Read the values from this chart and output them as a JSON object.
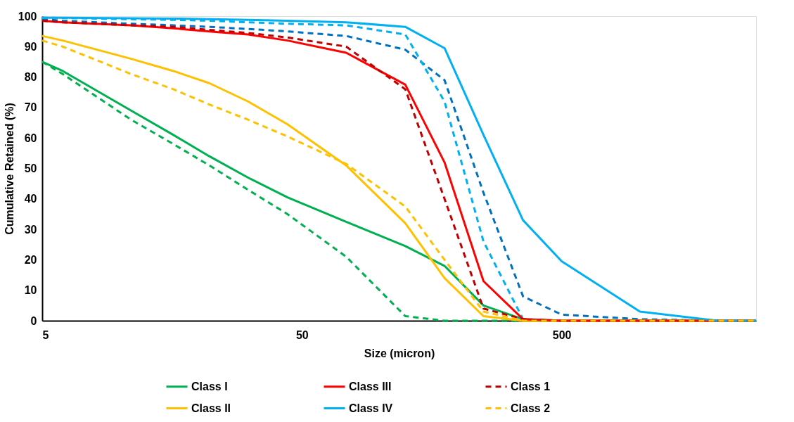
{
  "chart_data": {
    "type": "line",
    "xlabel": "Size (micron)",
    "ylabel": "Cumulative Retained (%)",
    "x": [
      5,
      6,
      11,
      16,
      22,
      31,
      44,
      74,
      125,
      177,
      250,
      355,
      500,
      1000,
      2000,
      2800
    ],
    "xlim": [
      5,
      2800
    ],
    "xticks": [
      5,
      50,
      500
    ],
    "ylim": [
      0,
      100
    ],
    "yticks": [
      0,
      10,
      20,
      30,
      40,
      50,
      60,
      70,
      80,
      90,
      100
    ],
    "log": "x",
    "grid": false,
    "legend": "bottom",
    "marker": "none",
    "series": [
      {
        "name": "Class I",
        "color": "#00b050",
        "line_style": "solid",
        "values": [
          85,
          82,
          69,
          61,
          54,
          47,
          40.5,
          32.5,
          24.5,
          18,
          5,
          0.5,
          0,
          0,
          0,
          0
        ]
      },
      {
        "name": "Class II",
        "color": "#ffc000",
        "line_style": "solid",
        "values": [
          93.5,
          92,
          86,
          82,
          78,
          72,
          64.5,
          51,
          32,
          14,
          1.5,
          0,
          0,
          0,
          0,
          0
        ]
      },
      {
        "name": "Class III",
        "color": "#ff0000",
        "line_style": "solid",
        "values": [
          98.5,
          98,
          97,
          96,
          95,
          94,
          92,
          88,
          77.5,
          52,
          13,
          0.5,
          0,
          0,
          0,
          0
        ]
      },
      {
        "name": "Class IV",
        "color": "#00b0f0",
        "line_style": "solid",
        "values": [
          99.5,
          99.5,
          99.3,
          99.2,
          99,
          98.8,
          98.5,
          98,
          96.5,
          89.5,
          61,
          33,
          19.5,
          3,
          0,
          0
        ]
      },
      {
        "name": "Class 1",
        "color": "#c00000",
        "line_style": "dashed",
        "values": [
          98.5,
          98,
          97,
          96.5,
          95.5,
          94.5,
          93,
          90,
          76,
          40,
          4,
          0.5,
          0,
          0,
          0,
          0
        ]
      },
      {
        "name": "Class 2",
        "color": "#ffc000",
        "line_style": "dashed",
        "values": [
          92,
          90,
          81,
          76,
          71,
          66,
          60.5,
          51.5,
          37.5,
          20,
          3,
          0,
          0,
          0,
          0,
          0
        ]
      },
      {
        "color": "#00b050",
        "line_style": "dashed",
        "values": [
          85,
          81,
          66,
          58,
          51,
          43,
          35,
          21,
          1.5,
          0,
          0,
          0,
          0,
          0,
          0,
          0
        ]
      },
      {
        "color": "#0070c0",
        "line_style": "dashed",
        "values": [
          99,
          98.5,
          97.5,
          97,
          96.5,
          95.8,
          95,
          93.5,
          89,
          79,
          42,
          8,
          2,
          0.5,
          0,
          0
        ]
      },
      {
        "color": "#00b0f0",
        "line_style": "dashed",
        "values": [
          99.5,
          99.4,
          99,
          98.8,
          98.5,
          98,
          97.5,
          97,
          94,
          72,
          26,
          0.5,
          0,
          0,
          0,
          0
        ]
      }
    ]
  }
}
